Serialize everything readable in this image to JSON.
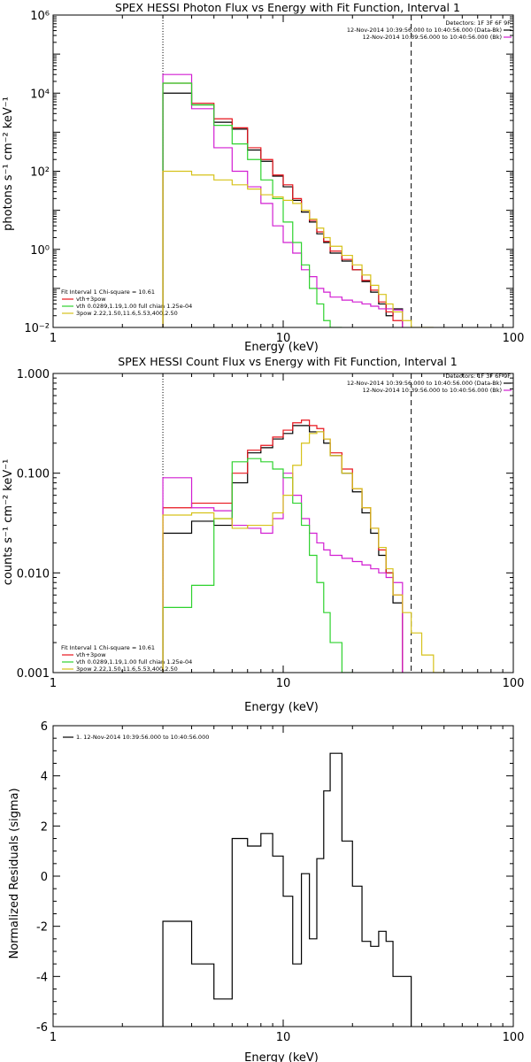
{
  "panels": [
    {
      "title": "SPEX HESSI Photon Flux vs Energy with Fit Function, Interval 1",
      "ylabel": "photons s⁻¹ cm⁻² keV⁻¹",
      "xlabel": "Energy (keV)",
      "legend_top": [
        "Detectors: 1F 3F 6F 9F",
        "12-Nov-2014 10:39:56.000 to 10:40:56.000 (Data-Bk)",
        "12-Nov-2014 10:39:56.000 to 10:40:56.000 (Bk)"
      ],
      "legend_bottom": [
        "Fit Interval 1   Chi-square = 10.61",
        "vth+3pow",
        "vth 0.0289,1.19,1.00  full chian 1.25e-04",
        "3pow 2.22,1.50,11.6,5.53,400,2.50"
      ]
    },
    {
      "title": "SPEX HESSI Count Flux vs Energy with Fit Function, Interval 1",
      "ylabel": "counts s⁻¹ cm⁻² keV⁻¹",
      "xlabel": "Energy (keV)",
      "legend_top": [
        "Detectors: 1F 3F 6F 9F",
        "12-Nov-2014 10:39:56.000 to 10:40:56.000 (Data-Bk)",
        "12-Nov-2014 10:39:56.000 to 10:40:56.000 (Bk)"
      ],
      "legend_bottom": [
        "Fit Interval 1   Chi-square = 10.61",
        "vth+3pow",
        "vth 0.0289,1.19,1.00  full chian 1.25e-04",
        "3pow 2.22,1.50,11.6,5.53,400,2.50"
      ]
    },
    {
      "title": "",
      "ylabel": "Normalized Residuals (sigma)",
      "xlabel": "Energy (keV)",
      "legend_top": [
        "1. 12-Nov-2014 10:39:56.000 to 10:40:56.000"
      ],
      "legend_bottom": []
    }
  ],
  "colors": {
    "black": "#000000",
    "red": "#e8141c",
    "magenta": "#d21ed2",
    "green": "#2ed22e",
    "yellow": "#d6c21a"
  },
  "chart_data": [
    {
      "type": "line",
      "style": "histogram-step",
      "title": "SPEX HESSI Photon Flux vs Energy with Fit Function, Interval 1",
      "xlabel": "Energy (keV)",
      "ylabel": "photons s⁻¹ cm⁻² keV⁻¹",
      "xscale": "log",
      "yscale": "log",
      "xlim": [
        1,
        100
      ],
      "ylim": [
        0.01,
        1000000
      ],
      "x_ticks": [
        "1",
        "10",
        "100"
      ],
      "y_ticks": [
        "10⁻²",
        "10⁰",
        "10²",
        "10⁴",
        "10⁶"
      ],
      "energy_edges": [
        3,
        4,
        5,
        6,
        7,
        8,
        9,
        10,
        11,
        12,
        13,
        14,
        15,
        16,
        18,
        20,
        22,
        24,
        26,
        28,
        30,
        33,
        36,
        40,
        45,
        50
      ],
      "vlines": [
        {
          "x": 3,
          "style": "dotted"
        },
        {
          "x": 36,
          "style": "dashed"
        }
      ],
      "series": [
        {
          "name": "12-Nov-2014 10:39:56.000 to 10:40:56.000 (Data-Bk)",
          "color": "black",
          "values": [
            10000,
            5000,
            1800,
            1200,
            350,
            180,
            75,
            40,
            18,
            9,
            5,
            2.5,
            1.5,
            0.8,
            0.5,
            0.3,
            0.15,
            0.08,
            0.04,
            0.02,
            0.03
          ]
        },
        {
          "name": "vth+3pow",
          "color": "red",
          "values": [
            18000,
            5500,
            2200,
            1300,
            400,
            200,
            80,
            45,
            20,
            10,
            5.5,
            2.8,
            1.6,
            0.9,
            0.55,
            0.3,
            0.16,
            0.09,
            0.045,
            0.025,
            0.015
          ]
        },
        {
          "name": "12-Nov-2014 10:39:56.000 to 10:40:56.000 (Bk)",
          "color": "magenta",
          "values": [
            30000,
            4000,
            400,
            100,
            40,
            15,
            4,
            1.5,
            0.8,
            0.3,
            0.2,
            0.1,
            0.08,
            0.06,
            0.05,
            0.045,
            0.04,
            0.035,
            0.03,
            0.03,
            0.028
          ]
        },
        {
          "name": "vth 0.0289,1.19,1.00  full chian 1.25e-04",
          "color": "green",
          "values": [
            18000,
            5000,
            1500,
            500,
            200,
            60,
            20,
            5,
            1.5,
            0.4,
            0.1,
            0.04,
            0.015,
            0.01
          ]
        },
        {
          "name": "3pow 2.22,1.50,11.6,5.53,400,2.50",
          "color": "yellow",
          "values": [
            100,
            80,
            60,
            45,
            35,
            25,
            22,
            18,
            15,
            10,
            6,
            3.5,
            2,
            1.2,
            0.7,
            0.4,
            0.22,
            0.12,
            0.07,
            0.04,
            0.025,
            0.015,
            0.01,
            0.008
          ]
        }
      ]
    },
    {
      "type": "line",
      "style": "histogram-step",
      "title": "SPEX HESSI Count Flux vs Energy with Fit Function, Interval 1",
      "xlabel": "Energy (keV)",
      "ylabel": "counts s⁻¹ cm⁻² keV⁻¹",
      "xscale": "log",
      "yscale": "log",
      "xlim": [
        1,
        100
      ],
      "ylim": [
        0.001,
        1
      ],
      "x_ticks": [
        "1",
        "10",
        "100"
      ],
      "y_ticks": [
        "0.001",
        "0.010",
        "0.100",
        "1.000"
      ],
      "energy_edges": [
        3,
        4,
        5,
        6,
        7,
        8,
        9,
        10,
        11,
        12,
        13,
        14,
        15,
        16,
        18,
        20,
        22,
        24,
        26,
        28,
        30,
        33,
        36,
        40,
        45,
        50
      ],
      "vlines": [
        {
          "x": 3,
          "style": "dotted"
        },
        {
          "x": 36,
          "style": "dashed"
        }
      ],
      "series": [
        {
          "name": "12-Nov-2014 10:39:56.000 to 10:40:56.000 (Data-Bk)",
          "color": "black",
          "values": [
            0.025,
            0.033,
            0.03,
            0.08,
            0.16,
            0.18,
            0.22,
            0.25,
            0.3,
            0.3,
            0.26,
            0.26,
            0.2,
            0.15,
            0.1,
            0.065,
            0.04,
            0.025,
            0.015,
            0.01,
            0.005
          ]
        },
        {
          "name": "vth+3pow",
          "color": "red",
          "values": [
            0.045,
            0.05,
            0.05,
            0.1,
            0.17,
            0.19,
            0.23,
            0.27,
            0.32,
            0.34,
            0.3,
            0.28,
            0.22,
            0.16,
            0.11,
            0.07,
            0.045,
            0.028,
            0.017,
            0.01,
            0.006
          ]
        },
        {
          "name": "12-Nov-2014 10:39:56.000 to 10:40:56.000 (Bk)",
          "color": "magenta",
          "values": [
            0.09,
            0.045,
            0.042,
            0.03,
            0.028,
            0.025,
            0.035,
            0.1,
            0.06,
            0.035,
            0.025,
            0.02,
            0.017,
            0.015,
            0.014,
            0.013,
            0.012,
            0.011,
            0.01,
            0.009,
            0.008
          ]
        },
        {
          "name": "vth 0.0289,1.19,1.00  full chian 1.25e-04",
          "color": "green",
          "values": [
            0.0045,
            0.0075,
            0.035,
            0.13,
            0.14,
            0.13,
            0.11,
            0.09,
            0.05,
            0.03,
            0.015,
            0.008,
            0.004,
            0.002,
            0.001
          ]
        },
        {
          "name": "3pow 2.22,1.50,11.6,5.53,400,2.50",
          "color": "yellow",
          "values": [
            0.038,
            0.04,
            0.035,
            0.028,
            0.03,
            0.03,
            0.04,
            0.06,
            0.12,
            0.2,
            0.25,
            0.26,
            0.22,
            0.15,
            0.1,
            0.07,
            0.045,
            0.028,
            0.018,
            0.011,
            0.006,
            0.004,
            0.0025,
            0.0015,
            0.001
          ]
        }
      ]
    },
    {
      "type": "line",
      "style": "histogram-step",
      "title": "",
      "xlabel": "Energy (keV)",
      "ylabel": "Normalized Residuals (sigma)",
      "xscale": "log",
      "xlim": [
        1,
        100
      ],
      "ylim": [
        -6,
        6
      ],
      "x_ticks": [
        "1",
        "10",
        "100"
      ],
      "y_ticks": [
        "-6",
        "-4",
        "-2",
        "0",
        "2",
        "4",
        "6"
      ],
      "energy_edges": [
        3,
        4,
        5,
        6,
        7,
        8,
        9,
        10,
        11,
        12,
        13,
        14,
        15,
        16,
        18,
        20,
        22,
        24,
        26,
        28,
        30,
        33,
        36
      ],
      "series": [
        {
          "name": "1. 12-Nov-2014 10:39:56.000 to 10:40:56.000",
          "color": "black",
          "values": [
            -1.8,
            -3.5,
            -4.9,
            1.5,
            1.2,
            1.7,
            0.8,
            -0.8,
            -3.5,
            0.1,
            -2.5,
            0.7,
            3.4,
            4.9,
            1.4,
            -0.4,
            -2.6,
            -2.8,
            -2.2,
            -2.6,
            -4.0,
            -4.0
          ]
        }
      ]
    }
  ]
}
